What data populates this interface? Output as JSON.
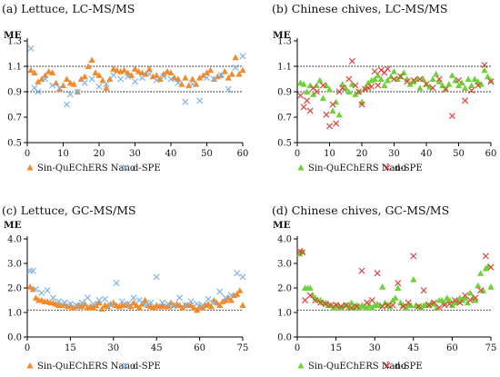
{
  "chart_data": [
    {
      "type": "scatter",
      "title": "(a) Lettuce, LC-MS/MS",
      "ylabel": "ME",
      "xlim": [
        0,
        60
      ],
      "ylim": [
        0.5,
        1.3
      ],
      "xticks": [
        0,
        10,
        20,
        30,
        40,
        50,
        60
      ],
      "yticks": [
        "0.5",
        "0.7",
        "0.9",
        "1.1",
        "1.3"
      ],
      "reference_lines": [
        0.9,
        1.1
      ],
      "legend": "bottom",
      "series": [
        {
          "name": "Sin-QuEChERS Nano",
          "marker": "triangle",
          "color": "#f28a2b",
          "x": [
            1,
            2,
            3,
            4,
            5,
            6,
            7,
            8,
            9,
            10,
            11,
            12,
            13,
            14,
            15,
            16,
            17,
            18,
            19,
            20,
            21,
            22,
            23,
            24,
            25,
            26,
            27,
            28,
            29,
            30,
            31,
            32,
            33,
            34,
            35,
            36,
            37,
            38,
            39,
            40,
            41,
            42,
            43,
            44,
            45,
            46,
            47,
            48,
            49,
            50,
            51,
            52,
            53,
            54,
            55,
            56,
            57,
            58,
            59,
            60
          ],
          "y": [
            1.07,
            1.05,
            0.98,
            1.0,
            1.03,
            1.06,
            1.05,
            0.97,
            0.92,
            0.95,
            1.0,
            0.97,
            0.96,
            0.9,
            1.0,
            1.02,
            1.1,
            1.15,
            1.05,
            1.03,
            0.99,
            0.93,
            1.0,
            1.08,
            1.07,
            1.06,
            1.07,
            1.05,
            1.03,
            1.08,
            1.06,
            1.05,
            1.04,
            1.08,
            1.02,
            1.03,
            1.0,
            1.04,
            1.06,
            1.05,
            1.01,
            1.0,
            0.96,
            1.01,
            0.95,
            1.0,
            0.96,
            1.01,
            1.03,
            1.05,
            1.07,
            1.0,
            1.02,
            1.03,
            1.06,
            1.01,
            1.04,
            1.17,
            1.04,
            1.07
          ]
        },
        {
          "name": "d-SPE",
          "marker": "cross",
          "color": "#7fb4e6",
          "x": [
            1,
            2,
            3,
            5,
            7,
            9,
            11,
            12,
            14,
            16,
            18,
            20,
            22,
            24,
            26,
            28,
            30,
            32,
            34,
            36,
            38,
            40,
            42,
            44,
            46,
            48,
            50,
            52,
            54,
            56,
            58,
            60
          ],
          "y": [
            1.24,
            0.93,
            0.9,
            1.0,
            0.95,
            0.93,
            0.8,
            0.88,
            0.9,
            0.97,
            1.0,
            0.94,
            0.96,
            1.03,
            1.0,
            1.02,
            0.98,
            1.01,
            1.04,
            0.99,
            1.02,
            1.0,
            0.97,
            0.82,
            0.96,
            0.83,
            1.01,
            1.0,
            1.03,
            0.92,
            1.09,
            1.18
          ]
        }
      ]
    },
    {
      "type": "scatter",
      "title": "(b) Chinese chives, LC-MS/MS",
      "ylabel": "ME",
      "xlim": [
        0,
        60
      ],
      "ylim": [
        0.5,
        1.3
      ],
      "xticks": [
        0,
        10,
        20,
        30,
        40,
        50,
        60
      ],
      "yticks": [
        "0.5",
        "0.7",
        "0.9",
        "1.1",
        "1.3"
      ],
      "reference_lines": [
        0.9,
        1.1
      ],
      "legend": "bottom",
      "series": [
        {
          "name": "Sin-QuEChERS Nano",
          "marker": "triangle",
          "color": "#6fd13a",
          "x": [
            1,
            2,
            3,
            4,
            5,
            6,
            7,
            8,
            9,
            10,
            11,
            12,
            13,
            14,
            15,
            16,
            17,
            18,
            19,
            20,
            21,
            22,
            23,
            24,
            25,
            26,
            27,
            28,
            29,
            30,
            31,
            32,
            33,
            34,
            35,
            36,
            37,
            38,
            39,
            40,
            41,
            42,
            43,
            44,
            45,
            46,
            47,
            48,
            49,
            50,
            51,
            52,
            53,
            54,
            55,
            56,
            57,
            58,
            59,
            60
          ],
          "y": [
            0.97,
            0.96,
            0.9,
            0.95,
            0.88,
            0.95,
            0.99,
            0.85,
            0.95,
            0.92,
            0.75,
            0.82,
            0.72,
            0.96,
            0.93,
            0.9,
            0.96,
            0.88,
            0.9,
            0.82,
            0.93,
            0.97,
            0.99,
            1.0,
            1.03,
            1.0,
            0.95,
            0.99,
            1.02,
            1.06,
            1.0,
            1.02,
            1.05,
            1.0,
            0.96,
            0.98,
            1.0,
            0.93,
            1.0,
            0.96,
            0.94,
            1.0,
            1.04,
            0.98,
            0.95,
            0.92,
            0.96,
            1.03,
            0.99,
            0.95,
            0.97,
            0.93,
            1.0,
            0.95,
            1.0,
            0.98,
            0.96,
            1.07,
            1.02,
            0.99
          ]
        },
        {
          "name": "d-SPE",
          "marker": "cross",
          "color": "#e0443e",
          "x": [
            1,
            2,
            3,
            4,
            5,
            6,
            8,
            9,
            10,
            11,
            12,
            13,
            14,
            16,
            17,
            18,
            19,
            20,
            21,
            22,
            23,
            24,
            25,
            26,
            27,
            28,
            30,
            32,
            34,
            36,
            38,
            40,
            42,
            44,
            46,
            48,
            50,
            52,
            54,
            56,
            58,
            60
          ],
          "y": [
            0.87,
            0.78,
            0.83,
            0.75,
            0.93,
            0.9,
            0.95,
            0.72,
            0.63,
            0.8,
            0.65,
            0.9,
            0.93,
            1.0,
            1.14,
            0.95,
            0.9,
            0.8,
            0.92,
            0.93,
            0.94,
            1.06,
            0.95,
            1.07,
            1.05,
            1.08,
            1.0,
            1.02,
            0.98,
            0.99,
            1.0,
            0.96,
            0.93,
            1.0,
            0.92,
            0.71,
            0.99,
            0.83,
            0.91,
            0.95,
            1.11,
            0.98
          ]
        }
      ]
    },
    {
      "type": "scatter",
      "title": "(c) Lettuce, GC-MS/MS",
      "ylabel": "ME",
      "xlim": [
        0,
        75
      ],
      "ylim": [
        0.0,
        4.0
      ],
      "xticks": [
        0,
        15,
        30,
        45,
        60,
        75
      ],
      "yticks": [
        "0.0",
        "1.0",
        "2.0",
        "3.0",
        "4.0"
      ],
      "reference_lines": [
        1.1
      ],
      "legend": "bottom",
      "series": [
        {
          "name": "Sin-QuEChERS Nano",
          "marker": "triangle",
          "color": "#f28a2b",
          "x": [
            1,
            2,
            3,
            4,
            5,
            6,
            7,
            8,
            9,
            10,
            11,
            12,
            13,
            14,
            15,
            16,
            17,
            18,
            19,
            20,
            21,
            22,
            23,
            24,
            25,
            26,
            27,
            28,
            29,
            30,
            31,
            32,
            33,
            34,
            35,
            36,
            37,
            38,
            39,
            40,
            41,
            42,
            43,
            44,
            45,
            46,
            47,
            48,
            49,
            50,
            51,
            52,
            53,
            54,
            55,
            56,
            57,
            58,
            59,
            60,
            61,
            62,
            63,
            64,
            65,
            66,
            67,
            68,
            69,
            70,
            71,
            72,
            73,
            74,
            75
          ],
          "y": [
            2.05,
            1.95,
            1.6,
            1.5,
            1.5,
            1.45,
            1.45,
            1.4,
            1.4,
            1.35,
            1.3,
            1.3,
            1.35,
            1.25,
            1.3,
            1.2,
            1.25,
            1.3,
            1.25,
            1.35,
            1.2,
            1.25,
            1.2,
            1.3,
            1.4,
            1.15,
            1.3,
            1.25,
            1.35,
            1.4,
            1.3,
            1.25,
            1.3,
            1.3,
            1.35,
            1.25,
            1.4,
            1.3,
            1.2,
            1.35,
            1.5,
            1.3,
            1.25,
            1.2,
            1.3,
            1.25,
            1.3,
            1.25,
            1.25,
            1.4,
            1.3,
            1.35,
            1.3,
            1.2,
            1.3,
            1.3,
            1.3,
            1.2,
            1.1,
            1.25,
            1.2,
            1.3,
            1.35,
            1.25,
            1.5,
            1.4,
            1.3,
            1.45,
            1.5,
            1.6,
            1.5,
            1.7,
            1.75,
            1.9,
            1.3
          ]
        },
        {
          "name": "d-SPE",
          "marker": "cross",
          "color": "#7fb4e6",
          "x": [
            1,
            2,
            3,
            5,
            7,
            9,
            11,
            13,
            15,
            17,
            19,
            21,
            23,
            25,
            27,
            29,
            31,
            33,
            35,
            37,
            39,
            41,
            43,
            45,
            47,
            49,
            51,
            53,
            55,
            57,
            59,
            61,
            63,
            65,
            67,
            69,
            71,
            73,
            75
          ],
          "y": [
            2.7,
            2.7,
            1.95,
            1.8,
            1.9,
            1.6,
            1.45,
            1.4,
            1.35,
            1.3,
            1.4,
            1.6,
            1.35,
            1.5,
            1.55,
            1.3,
            2.2,
            1.45,
            1.35,
            1.6,
            1.5,
            1.35,
            1.4,
            2.45,
            1.4,
            1.35,
            1.25,
            1.6,
            1.3,
            1.45,
            1.35,
            1.3,
            1.55,
            1.4,
            1.85,
            1.6,
            1.7,
            2.6,
            2.45
          ]
        }
      ]
    },
    {
      "type": "scatter",
      "title": "(d) Chinese chives, GC-MS/MS",
      "ylabel": "ME",
      "xlim": [
        0,
        75
      ],
      "ylim": [
        0.0,
        4.0
      ],
      "xticks": [
        0,
        15,
        30,
        45,
        60,
        75
      ],
      "yticks": [
        "0.0",
        "1.0",
        "2.0",
        "3.0",
        "4.0"
      ],
      "reference_lines": [
        1.1
      ],
      "legend": "bottom",
      "series": [
        {
          "name": "Sin-QuEChERS Nano",
          "marker": "triangle",
          "color": "#6fd13a",
          "x": [
            1,
            2,
            3,
            4,
            5,
            6,
            7,
            8,
            9,
            10,
            11,
            12,
            13,
            14,
            15,
            16,
            17,
            18,
            19,
            20,
            21,
            22,
            23,
            24,
            25,
            26,
            27,
            28,
            29,
            30,
            31,
            32,
            33,
            34,
            35,
            36,
            37,
            38,
            39,
            40,
            41,
            42,
            43,
            44,
            45,
            46,
            47,
            48,
            49,
            50,
            51,
            52,
            53,
            54,
            55,
            56,
            57,
            58,
            59,
            60,
            61,
            62,
            63,
            64,
            65,
            66,
            67,
            68,
            69,
            70,
            71,
            72,
            73,
            74,
            75
          ],
          "y": [
            3.4,
            3.5,
            2.0,
            2.0,
            2.0,
            1.7,
            1.6,
            1.5,
            1.5,
            1.4,
            1.4,
            1.3,
            1.3,
            1.2,
            1.3,
            1.25,
            1.2,
            1.3,
            1.3,
            1.2,
            1.4,
            1.2,
            1.3,
            1.2,
            1.3,
            1.25,
            1.2,
            1.3,
            1.2,
            1.3,
            1.35,
            1.3,
            2.05,
            1.4,
            1.3,
            1.25,
            1.5,
            1.6,
            2.0,
            1.4,
            1.3,
            1.2,
            1.3,
            1.3,
            2.35,
            1.3,
            1.25,
            1.2,
            1.3,
            1.35,
            1.3,
            1.4,
            1.35,
            1.2,
            1.5,
            1.5,
            1.4,
            1.6,
            1.5,
            1.3,
            1.4,
            1.45,
            1.6,
            1.5,
            1.6,
            1.4,
            1.8,
            1.6,
            1.5,
            2.1,
            2.6,
            1.9,
            2.8,
            2.9,
            2.05
          ]
        },
        {
          "name": "d-SPE",
          "marker": "cross",
          "color": "#e0443e",
          "x": [
            1,
            2,
            3,
            5,
            7,
            9,
            11,
            13,
            15,
            17,
            19,
            21,
            23,
            25,
            27,
            29,
            31,
            33,
            35,
            37,
            39,
            41,
            43,
            45,
            47,
            49,
            51,
            53,
            55,
            57,
            59,
            61,
            63,
            65,
            67,
            69,
            71,
            73,
            75
          ],
          "y": [
            3.5,
            3.45,
            1.5,
            1.7,
            1.5,
            1.4,
            1.35,
            1.3,
            1.3,
            1.25,
            1.3,
            1.2,
            1.25,
            2.7,
            1.4,
            1.5,
            2.6,
            1.25,
            1.3,
            1.3,
            2.2,
            1.25,
            1.4,
            3.3,
            1.25,
            1.9,
            1.3,
            1.4,
            1.2,
            1.3,
            1.35,
            1.5,
            1.4,
            1.7,
            1.5,
            1.6,
            1.9,
            3.3,
            2.85
          ]
        }
      ]
    }
  ]
}
